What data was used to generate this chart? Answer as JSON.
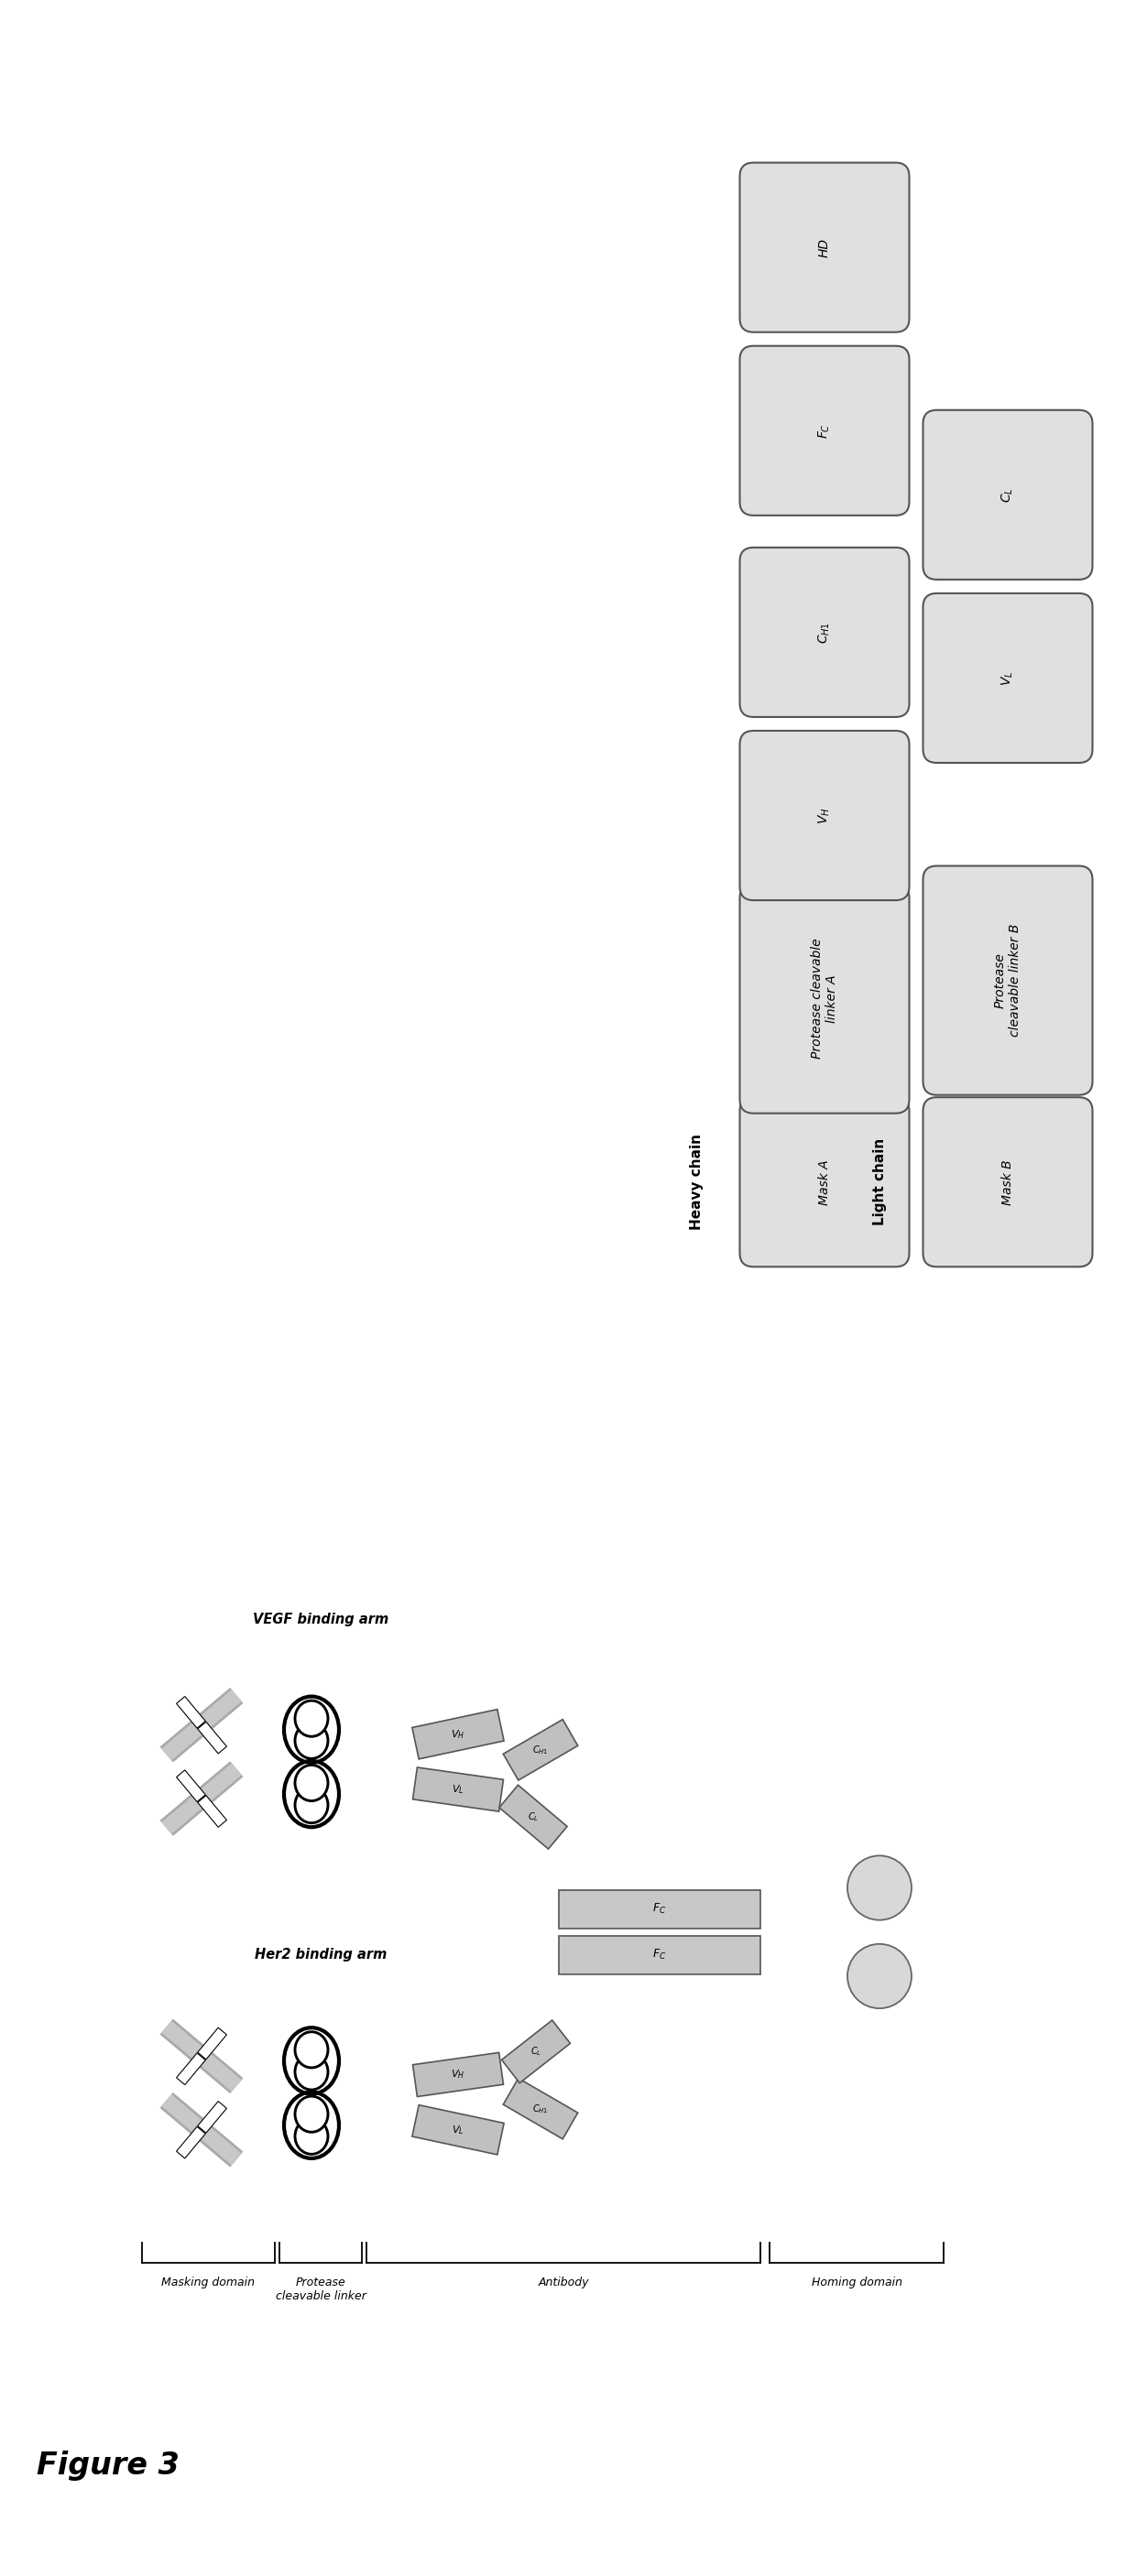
{
  "figure_title": "Figure 3",
  "bg_color": "#ffffff",
  "box_fill": "#e0e0e0",
  "box_edge": "#555555",
  "heavy_chain_label": "Heavy chain",
  "light_chain_label": "Light chain",
  "vegf_label": "VEGF binding arm",
  "her2_label": "Her2 binding arm",
  "bottom_labels": [
    "Masking domain",
    "Protease\ncleavable linker",
    "Antibody",
    "Homing domain"
  ],
  "heavy_boxes": [
    "Mask A",
    "Protease cleavable\nlinker A",
    "$V_H$",
    "$C_{H1}$",
    "$F_C$",
    "HD"
  ],
  "light_boxes": [
    "Mask B",
    "Protease\ncleavable linker B",
    "$V_L$",
    "$C_L$"
  ],
  "arm_fill": "#bbbbbb",
  "fc_fill": "#cccccc",
  "homing_fill": "#d0d0d0"
}
